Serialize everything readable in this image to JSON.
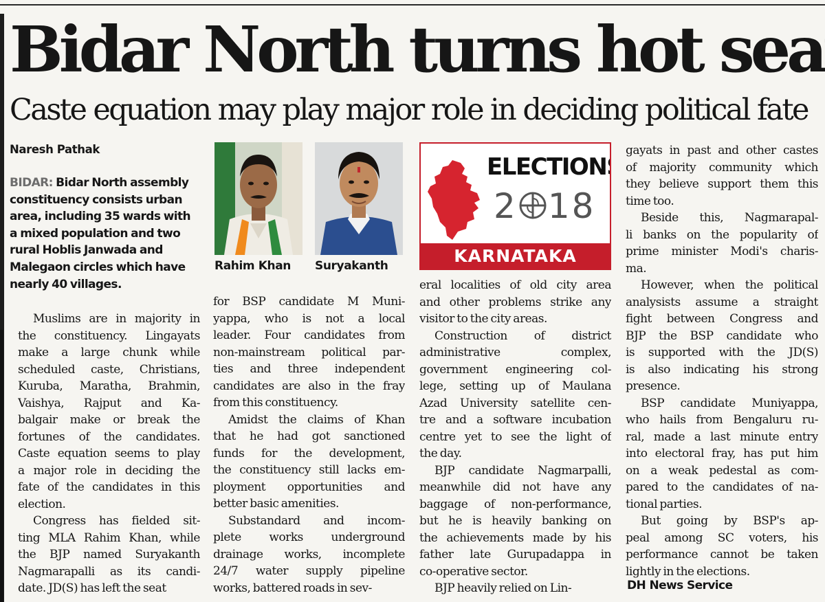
{
  "headline": "Bidar North turns hot seat",
  "deck": "Caste equation may play major role in deciding political fate",
  "byline": "Naresh Pathak",
  "intro": {
    "dateline": "BIDAR:",
    "text": " Bidar North assembly constituency consists urban area, including 35 wards with a mixed population and two rural Hoblis Janwada and Malegaon circles which have nearly 40 villages."
  },
  "photos": [
    {
      "caption": "Rahim Khan"
    },
    {
      "caption": "Suryakanth"
    }
  ],
  "logo": {
    "title": "ELECTIONS",
    "year_left": "2",
    "year_right": "18",
    "state": "KARNATAKA",
    "accent": "#c51e2b"
  },
  "columns": {
    "col1": [
      "Muslims are in majority in",
      "the constituency. Lingayats",
      "make a large chunk while",
      "scheduled caste, Christians,",
      "Kuruba, Maratha, Brahmin,",
      "Vaishya, Rajput and Ka-",
      "balgair make or break the",
      "fortunes of the candidates.",
      "Caste equation seems to play",
      "a major role in deciding the",
      "fate of the candidates in this",
      "election.",
      "Congress has fielded sit-",
      "ting MLA Rahim Khan, while",
      "the BJP named Suryakanth",
      "Nagmarapalli as its candi-",
      "date. JD(S) has left the seat"
    ],
    "col2": [
      "for BSP candidate M Muni-",
      "yappa, who is not a local",
      "leader. Four candidates from",
      "non-mainstream political par-",
      "ties and three independent",
      "candidates are also in the fray",
      "from this constituency.",
      "Amidst the claims of Khan",
      "that he had got sanctioned",
      "funds for the development,",
      "the constituency still lacks em-",
      "ployment opportunities and",
      "better basic amenities.",
      "Substandard and incom-",
      "plete works underground",
      "drainage works, incomplete",
      "24/7 water supply pipeline",
      "works, battered roads in sev-"
    ],
    "col3": [
      "eral localities of old city area",
      "and other problems strike any",
      "visitor to the city areas.",
      "Construction of district",
      "administrative complex,",
      "government engineering col-",
      "lege, setting up of Maulana",
      "Azad University satellite cen-",
      "tre and a software incubation",
      "centre yet to see the light of",
      "the day.",
      "BJP candidate Nagmarpalli,",
      "meanwhile did not have any",
      "baggage of non-performance,",
      "but he is heavily banking on",
      "the achievements made by his",
      "father late Gurupadappa in",
      "co-operative sector.",
      "BJP heavily relied on Lin-"
    ],
    "col4": [
      "gayats in past and other castes",
      "of majority community which",
      "they believe support them this",
      "time too.",
      "Beside this, Nagmarapal-",
      "li banks on the popularity of",
      "prime minister Modi's charis-",
      "ma.",
      "However, when the political",
      "analysists assume a straight",
      "fight between Congress and",
      "BJP the BSP candidate who",
      "is supported with the JD(S)",
      "is also indicating his strong",
      "presence.",
      "BSP candidate Muniyappa,",
      "who hails from Bengaluru ru-",
      "ral, made a last minute entry",
      "into electoral fray, has put him",
      "on a weak pedestal as com-",
      "pared to the candidates of na-",
      "tional parties.",
      "But going by BSP's ap-",
      "peal among SC voters, his",
      "performance cannot be taken",
      "lightly in the elections."
    ]
  },
  "credit": "DH News Service"
}
